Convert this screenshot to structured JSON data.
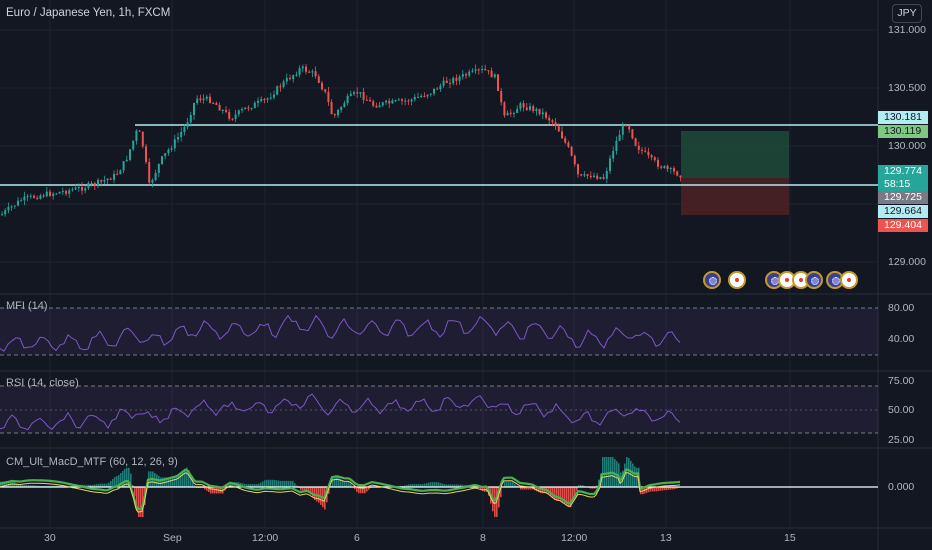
{
  "header": {
    "symbol_title": "Euro / Japanese Yen, 1h, FXCM",
    "currency_button": "JPY"
  },
  "price_axis": {
    "labels": [
      "131.000",
      "130.500",
      "130.000",
      "129.000"
    ]
  },
  "price_tags": [
    {
      "value": "130.181",
      "bg": "#b2ebf2",
      "color": "#131722"
    },
    {
      "value": "130.119",
      "bg": "#81c784",
      "color": "#131722"
    },
    {
      "value": "129.774",
      "bg": "#26a69a",
      "color": "#ffffff"
    },
    {
      "value": "58:15",
      "bg": "#26a69a",
      "color": "#ffffff"
    },
    {
      "value": "129.725",
      "bg": "#787b86",
      "color": "#ffffff"
    },
    {
      "value": "129.664",
      "bg": "#b2ebf2",
      "color": "#131722"
    },
    {
      "value": "129.404",
      "bg": "#ef5350",
      "color": "#ffffff"
    }
  ],
  "indicators": {
    "mfi": {
      "label": "MFI (14)",
      "axis": [
        "80.00",
        "40.00"
      ]
    },
    "rsi": {
      "label": "RSI (14, close)",
      "axis": [
        "75.00",
        "50.00",
        "25.00"
      ]
    },
    "macd": {
      "label": "CM_Ult_MacD_MTF (60, 12, 26, 9)",
      "axis": [
        "0.000"
      ]
    }
  },
  "time_axis": [
    "30",
    "Sep",
    "12:00",
    "6",
    "8",
    "12:00",
    "13",
    "15"
  ],
  "events": [
    "flag",
    "dot",
    "flag",
    "dot",
    "dot",
    "flag",
    "flag",
    "dot"
  ],
  "colors": {
    "background": "#131722",
    "bull": "#26a69a",
    "bear": "#ef5350",
    "level_line": "#b2ebf2",
    "indicator_line": "#7e57c2"
  }
}
